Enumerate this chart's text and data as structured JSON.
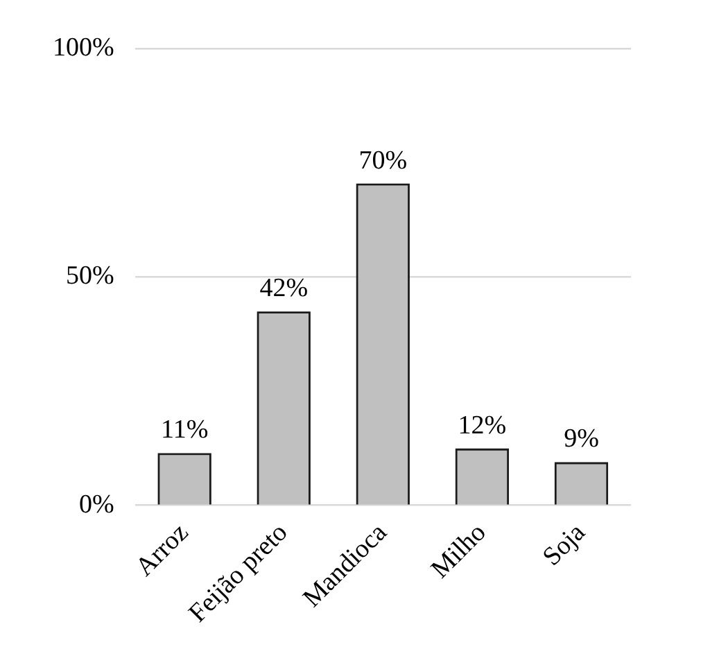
{
  "chart_data": {
    "type": "bar",
    "categories": [
      "Arroz",
      "Feijão preto",
      "Mandioca",
      "Milho",
      "Soja"
    ],
    "values": [
      11,
      42,
      70,
      12,
      9
    ],
    "color": "#c0c0c0",
    "value_labels": [
      "11%",
      "42%",
      "70%",
      "12%",
      "9%"
    ],
    "ylim": [
      0,
      100
    ],
    "yticks": [
      {
        "value": 0,
        "label": "0%"
      },
      {
        "value": 50,
        "label": "50%"
      },
      {
        "value": 100,
        "label": "100%"
      }
    ],
    "grid": "y",
    "legend": false
  }
}
